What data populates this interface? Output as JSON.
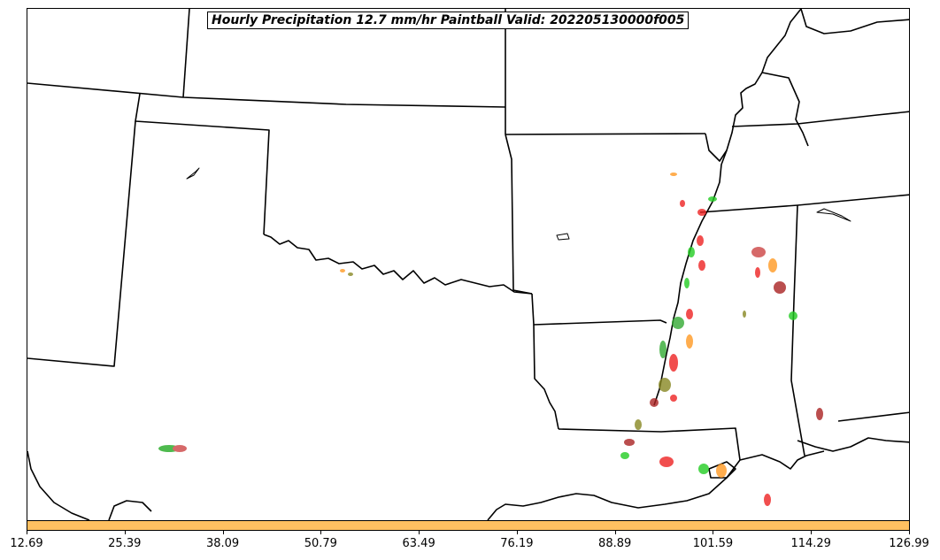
{
  "title": "Hourly Precipitation 12.7 mm/hr Paintball Valid: 202205130000f005",
  "colorbar": {
    "color": "#ffc061",
    "ticks": [
      "12.69",
      "25.39",
      "38.09",
      "50.79",
      "63.49",
      "76.19",
      "88.89",
      "101.59",
      "114.29",
      "126.99"
    ]
  },
  "chart_data": {
    "type": "map",
    "projection": "regional (south-central United States)",
    "member_colors": [
      "#ee2222",
      "#22cc22",
      "#ff9922",
      "#aa2222",
      "#33aa33",
      "#888822",
      "#ee8811",
      "#cc4444"
    ],
    "x_axis_ticks": [
      12.69,
      25.39,
      38.09,
      50.79,
      63.49,
      76.19,
      88.89,
      101.59,
      114.29,
      126.99
    ]
  }
}
